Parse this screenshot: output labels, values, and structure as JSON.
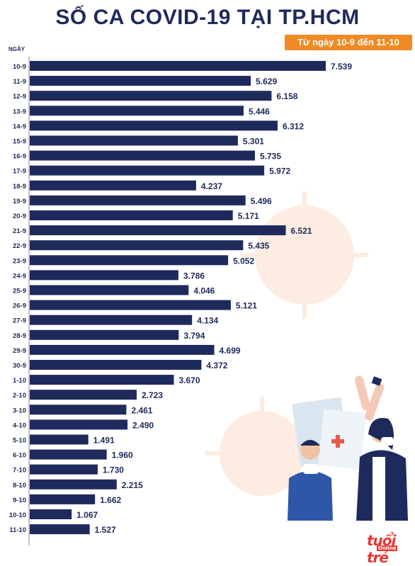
{
  "page": {
    "title": "SỐ CA COVID-19 TẠI TP.HCM",
    "date_range": "Từ ngày 10-9 đến 11-10",
    "logo_text": "tuổi trẻ",
    "logo_sub": "Online",
    "colors": {
      "bar": "#1f2a5c",
      "accent": "#f08a24",
      "virus_bg": "#fbe6d8",
      "logo": "#e53935"
    },
    "icons": [
      "virus-icon",
      "sick-people-illustration",
      "test-tube-icon",
      "medical-chart-icon"
    ]
  },
  "chart_data": {
    "type": "bar",
    "orientation": "horizontal",
    "title": "SỐ CA COVID-19 TẠI TP.HCM",
    "ylabel": "NGÀY",
    "xlim": [
      0,
      7539
    ],
    "grid": false,
    "categories": [
      "10-9",
      "11-9",
      "12-9",
      "13-9",
      "14-9",
      "15-9",
      "16-9",
      "17-9",
      "18-9",
      "19-9",
      "20-9",
      "21-9",
      "22-9",
      "23-9",
      "24-9",
      "25-9",
      "26-9",
      "27-9",
      "28-9",
      "29-9",
      "30-9",
      "1-10",
      "2-10",
      "3-10",
      "4-10",
      "5-10",
      "6-10",
      "7-10",
      "8-10",
      "9-10",
      "10-10",
      "11-10"
    ],
    "values": [
      7539,
      5629,
      6158,
      5446,
      6312,
      5301,
      5735,
      5972,
      4237,
      5496,
      5171,
      6521,
      5435,
      5052,
      3786,
      4046,
      5121,
      4134,
      3794,
      4699,
      4372,
      3670,
      2723,
      2461,
      2490,
      1491,
      1960,
      1730,
      2215,
      1662,
      1067,
      1527
    ],
    "value_labels": [
      "7.539",
      "5.629",
      "6.158",
      "5.446",
      "6.312",
      "5.301",
      "5.735",
      "5.972",
      "4.237",
      "5.496",
      "5.171",
      "6.521",
      "5.435",
      "5.052",
      "3.786",
      "4.046",
      "5.121",
      "4.134",
      "3.794",
      "4.699",
      "4.372",
      "3.670",
      "2.723",
      "2.461",
      "2.490",
      "1.491",
      "1.960",
      "1.730",
      "2.215",
      "1.662",
      "1.067",
      "1.527"
    ]
  }
}
